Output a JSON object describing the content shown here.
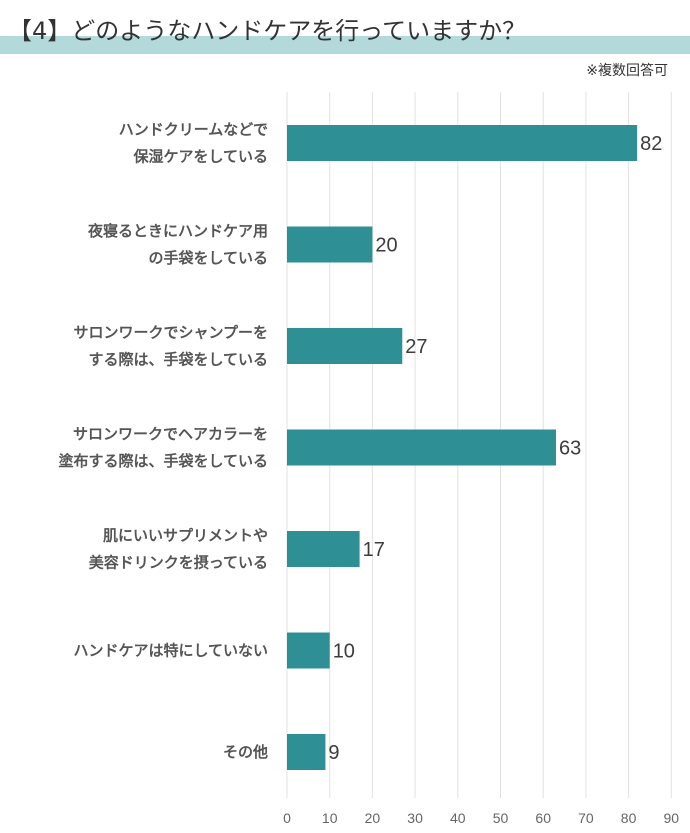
{
  "title": "【4】どのようなハンドケアを行っていますか？",
  "note": "※複数回答可",
  "colors": {
    "bar": "#2e8f94",
    "title_band": "#b3d9da",
    "grid": "#e2e2e2"
  },
  "chart_data": {
    "type": "bar",
    "orientation": "horizontal",
    "title": "【4】どのようなハンドケアを行っていますか？",
    "categories": [
      [
        "ハンドクリームなどで",
        "保湿ケアをしている"
      ],
      [
        "夜寝るときにハンドケア用",
        "の手袋をしている"
      ],
      [
        "サロンワークでシャンプーを",
        "する際は、手袋をしている"
      ],
      [
        "サロンワークでヘアカラーを",
        "塗布する際は、手袋をしている"
      ],
      [
        "肌にいいサプリメントや",
        "美容ドリンクを摂っている"
      ],
      [
        "ハンドケアは特にしていない"
      ],
      [
        "その他"
      ]
    ],
    "values": [
      82,
      20,
      27,
      63,
      17,
      10,
      9
    ],
    "xlim": [
      0,
      90
    ],
    "ticks": [
      0,
      10,
      20,
      30,
      40,
      50,
      60,
      70,
      80,
      90
    ],
    "grid": true,
    "data_labels": true,
    "legend": "none"
  }
}
